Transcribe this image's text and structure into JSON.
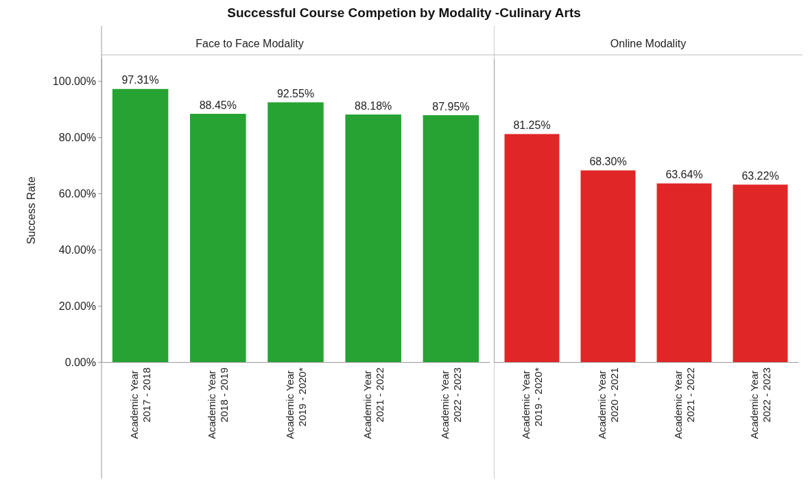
{
  "chart_data": [
    {
      "type": "bar",
      "title": "Successful Course Competion by Modality -Culinary Arts",
      "subtitle": "Face to Face Modality",
      "ylabel": "Success Rate",
      "categories": [
        "Academic Year 2017 - 2018",
        "Academic Year 2018 - 2019",
        "Academic Year 2019 - 2020*",
        "Academic Year 2021 - 2022",
        "Academic Year 2022 - 2023"
      ],
      "values": [
        97.31,
        88.45,
        92.55,
        88.18,
        87.95
      ],
      "color": "#26a332",
      "value_labels": [
        "97.31%",
        "88.45%",
        "92.55%",
        "88.18%",
        "87.95%"
      ],
      "ylim": [
        0,
        108
      ],
      "yticks": [
        {
          "value": 0,
          "label": "0.00%"
        },
        {
          "value": 20,
          "label": "20.00%"
        },
        {
          "value": 40,
          "label": "40.00%"
        },
        {
          "value": 60,
          "label": "60.00%"
        },
        {
          "value": 80,
          "label": "80.00%"
        },
        {
          "value": 100,
          "label": "100.00%"
        }
      ]
    },
    {
      "type": "bar",
      "subtitle": "Online Modality",
      "categories": [
        "Academic Year 2019 - 2020*",
        "Academic Year 2020 - 2021",
        "Academic Year 2021 - 2022",
        "Academic Year 2022 - 2023"
      ],
      "values": [
        81.25,
        68.3,
        63.64,
        63.22
      ],
      "color": "#e02626",
      "value_labels": [
        "81.25%",
        "68.30%",
        "63.64%",
        "63.22%"
      ],
      "ylim": [
        0,
        108
      ],
      "tick_labels": "x"
    }
  ]
}
